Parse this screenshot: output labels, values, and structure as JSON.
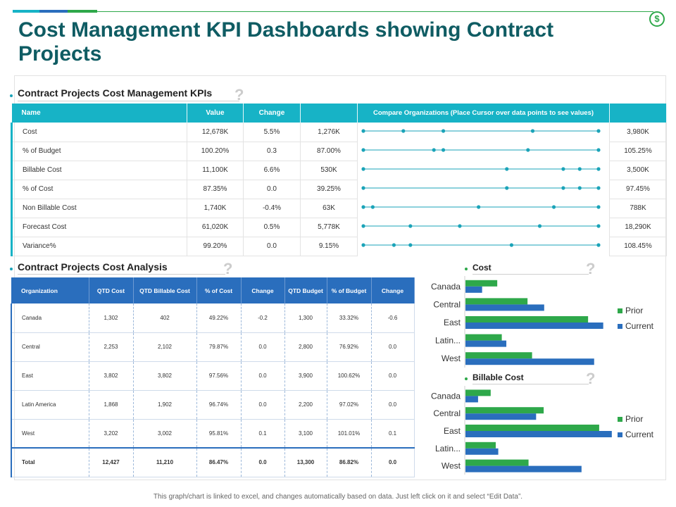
{
  "title": "Cost Management KPI Dashboards showing Contract Projects",
  "colors": {
    "teal": "#17b3c6",
    "blue": "#2a6ebd",
    "green": "#2ea84a",
    "title": "#0f5c63"
  },
  "icons": {
    "dollar": "$"
  },
  "kpi_section": {
    "title": "Contract Projects Cost Management KPIs",
    "help": "?",
    "headers": [
      "Name",
      "Value",
      "Change",
      "",
      "Compare Organizations (Place Cursor over data points to see values)",
      ""
    ],
    "rows": [
      {
        "name": "Cost",
        "value": "12,678K",
        "change": "5.5%",
        "extra": "1,276K",
        "right": "3,980K"
      },
      {
        "name": "% of Budget",
        "value": "100.20%",
        "change": "0.3",
        "extra": "87.00%",
        "right": "105.25%"
      },
      {
        "name": "Billable Cost",
        "value": "11,100K",
        "change": "6.6%",
        "extra": "530K",
        "right": "3,500K"
      },
      {
        "name": "% of Cost",
        "value": "87.35%",
        "change": "0.0",
        "extra": "39.25%",
        "right": "97.45%"
      },
      {
        "name": "Non Billable Cost",
        "value": "1,740K",
        "change": "-0.4%",
        "extra": "63K",
        "right": "788K"
      },
      {
        "name": "Forecast Cost",
        "value": "61,020K",
        "change": "0.5%",
        "extra": "5,778K",
        "right": "18,290K"
      },
      {
        "name": "Variance%",
        "value": "99.20%",
        "change": "0.0",
        "extra": "9.15%",
        "right": "108.45%"
      }
    ]
  },
  "analysis_section": {
    "title": "Contract Projects Cost Analysis",
    "help": "?",
    "headers": [
      "Organization",
      "QTD Cost",
      "QTD Billable Cost",
      "% of Cost",
      "Change",
      "QTD Budget",
      "% of Budget",
      "Change"
    ],
    "rows": [
      [
        "Canada",
        "1,302",
        "402",
        "49.22%",
        "-0.2",
        "1,300",
        "33.32%",
        "-0.6"
      ],
      [
        "Central",
        "2,253",
        "2,102",
        "79.87%",
        "0.0",
        "2,800",
        "76.92%",
        "0.0"
      ],
      [
        "East",
        "3,802",
        "3,802",
        "97.56%",
        "0.0",
        "3,900",
        "100.62%",
        "0.0"
      ],
      [
        "Latin America",
        "1,868",
        "1,902",
        "96.74%",
        "0.0",
        "2,200",
        "97.02%",
        "0.0"
      ],
      [
        "West",
        "3,202",
        "3,002",
        "95.81%",
        "0.1",
        "3,100",
        "101.01%",
        "0.1"
      ]
    ],
    "total": [
      "Total",
      "12,427",
      "11,210",
      "86.47%",
      "0.0",
      "13,300",
      "86.82%",
      "0.0"
    ]
  },
  "chart_data": [
    {
      "type": "line",
      "title": "Compare Organizations (Place Cursor over data points to see values)",
      "note": "sparkline dot positions as fraction of row range",
      "series": [
        {
          "name": "Cost",
          "values": [
            0.0,
            0.17,
            0.34,
            0.72,
            1.0
          ]
        },
        {
          "name": "% of Budget",
          "values": [
            0.0,
            0.3,
            0.34,
            0.7,
            1.0
          ]
        },
        {
          "name": "Billable Cost",
          "values": [
            0.0,
            0.61,
            0.85,
            0.92,
            1.0
          ]
        },
        {
          "name": "% of Cost",
          "values": [
            0.0,
            0.61,
            0.85,
            0.92,
            1.0
          ]
        },
        {
          "name": "Non Billable Cost",
          "values": [
            0.0,
            0.04,
            0.49,
            0.81,
            1.0
          ]
        },
        {
          "name": "Forecast Cost",
          "values": [
            0.0,
            0.2,
            0.41,
            0.75,
            1.0
          ]
        },
        {
          "name": "Variance%",
          "values": [
            0.0,
            0.13,
            0.2,
            0.63,
            1.0
          ]
        }
      ]
    },
    {
      "type": "bar",
      "orientation": "horizontal",
      "title": "Cost",
      "help": "?",
      "categories": [
        "Canada",
        "Central",
        "East",
        "Latin...",
        "West"
      ],
      "series": [
        {
          "name": "Prior",
          "color": "#2ea84a",
          "values": [
            1.05,
            2.05,
            4.05,
            1.2,
            2.2
          ]
        },
        {
          "name": "Current",
          "color": "#2a6ebd",
          "values": [
            0.55,
            2.6,
            4.55,
            1.35,
            4.25
          ]
        }
      ],
      "xlim": [
        0,
        5
      ],
      "legend": "right"
    },
    {
      "type": "bar",
      "orientation": "horizontal",
      "title": "Billable Cost",
      "help": "?",
      "categories": [
        "Canada",
        "Central",
        "East",
        "Latin...",
        "West"
      ],
      "series": [
        {
          "name": "Prior",
          "color": "#2ea84a",
          "values": [
            1.0,
            3.1,
            5.3,
            1.2,
            2.5
          ]
        },
        {
          "name": "Current",
          "color": "#2a6ebd",
          "values": [
            0.5,
            2.8,
            5.8,
            1.3,
            4.6
          ]
        }
      ],
      "xlim": [
        0,
        6
      ],
      "legend": "right"
    }
  ],
  "footer": "This graph/chart is linked to excel, and changes automatically based on data. Just left click on it and select “Edit Data”."
}
